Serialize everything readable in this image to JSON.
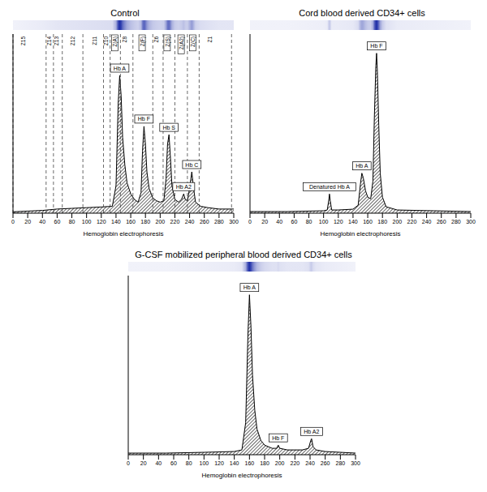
{
  "chart_data": [
    {
      "type": "line",
      "title": "Control",
      "x_label": "Hemoglobin electrophoresis",
      "color": "#000000",
      "x": [
        0,
        20,
        40,
        60,
        80,
        100,
        120,
        135,
        140,
        143,
        145,
        147,
        149,
        152,
        155,
        160,
        165,
        170,
        174,
        176,
        178,
        180,
        182,
        185,
        190,
        195,
        200,
        205,
        208,
        210,
        212,
        214,
        216,
        220,
        225,
        229,
        232,
        234,
        237,
        240,
        243,
        245,
        248,
        255,
        265,
        280,
        300
      ],
      "values": [
        1,
        1.5,
        2,
        3,
        3.5,
        4,
        4.5,
        5,
        20,
        80,
        100,
        85,
        55,
        35,
        22,
        14,
        10,
        8,
        15,
        45,
        63,
        50,
        30,
        18,
        11,
        9,
        8,
        9,
        25,
        50,
        57,
        40,
        20,
        10,
        8,
        10,
        14,
        10,
        9,
        18,
        30,
        20,
        8,
        5,
        4,
        3,
        3
      ],
      "xlim": [
        0,
        300
      ],
      "xticks": [
        0,
        20,
        40,
        60,
        80,
        100,
        120,
        140,
        160,
        180,
        200,
        220,
        240,
        260,
        280,
        300
      ],
      "ylim": [
        0,
        130
      ],
      "tick_labels": "x",
      "peaks": [
        {
          "label": "Hb A",
          "x": 145,
          "y": 100
        },
        {
          "label": "Hb F",
          "x": 178,
          "y": 63
        },
        {
          "label": "Hb S",
          "x": 212,
          "y": 57
        },
        {
          "label": "Hb A2",
          "x": 232,
          "y": 14
        },
        {
          "label": "Hb C",
          "x": 243,
          "y": 30
        }
      ],
      "zones": {
        "boundaries": [
          0,
          45,
          55,
          67,
          95,
          123,
          132,
          146,
          163,
          190,
          204,
          220,
          237,
          253,
          297
        ],
        "labels": [
          {
            "label": "Z15",
            "x": 14
          },
          {
            "label": "Z14",
            "x": 49
          },
          {
            "label": "Z13",
            "x": 59
          },
          {
            "label": "Z12",
            "x": 81
          },
          {
            "label": "Z11",
            "x": 111
          },
          {
            "label": "Z10",
            "x": 127
          },
          {
            "label": "Z(A)",
            "x": 139
          },
          {
            "label": "Z8",
            "x": 152
          },
          {
            "label": "Z(F)",
            "x": 176
          },
          {
            "label": "Z6",
            "x": 195
          },
          {
            "label": "Z(S)",
            "x": 210
          },
          {
            "label": "Z(A2)",
            "x": 229
          },
          {
            "label": "Z(C)",
            "x": 245
          },
          {
            "label": "Z1",
            "x": 268
          }
        ]
      }
    },
    {
      "type": "line",
      "title": "Cord blood derived CD34+ cells",
      "x_label": "Hemoglobin electrophoresis",
      "color": "#000000",
      "x": [
        0,
        50,
        100,
        105,
        107,
        108,
        109,
        111,
        120,
        140,
        147,
        150,
        152,
        154,
        157,
        160,
        164,
        167,
        169,
        171,
        172,
        173,
        175,
        177,
        180,
        185,
        200,
        250,
        300
      ],
      "values": [
        1,
        1,
        1.5,
        2,
        8,
        12,
        8,
        2,
        2,
        2.5,
        5,
        18,
        25,
        22,
        14,
        10,
        9,
        20,
        60,
        92,
        100,
        90,
        55,
        25,
        10,
        4,
        2,
        1.5,
        1
      ],
      "xlim": [
        0,
        300
      ],
      "xticks": [
        0,
        20,
        40,
        60,
        80,
        100,
        120,
        140,
        160,
        180,
        200,
        220,
        240,
        260,
        280,
        300
      ],
      "ylim": [
        0,
        112
      ],
      "tick_labels": "x",
      "peaks": [
        {
          "label": "Denatured Hb A",
          "x": 108,
          "y": 12
        },
        {
          "label": "Hb A",
          "x": 152,
          "y": 25
        },
        {
          "label": "Hb F",
          "x": 172,
          "y": 100
        }
      ]
    },
    {
      "type": "line",
      "title": "G-CSF mobilized peripheral blood derived CD34+ cells",
      "x_label": "Hemoglobin electrophoresis",
      "color": "#000000",
      "x": [
        0,
        50,
        100,
        140,
        150,
        155,
        158,
        160,
        162,
        164,
        167,
        170,
        175,
        180,
        190,
        196,
        198,
        200,
        210,
        230,
        238,
        241,
        242,
        244,
        248,
        260,
        300
      ],
      "values": [
        1,
        1,
        1.5,
        2,
        3,
        20,
        75,
        100,
        80,
        50,
        28,
        16,
        9,
        6,
        4,
        4,
        6,
        4,
        3,
        3,
        4,
        9,
        10,
        5,
        3,
        2,
        1
      ],
      "xlim": [
        0,
        300
      ],
      "xticks": [
        0,
        20,
        40,
        60,
        80,
        100,
        120,
        140,
        160,
        180,
        200,
        220,
        240,
        260,
        280,
        300
      ],
      "ylim": [
        0,
        112
      ],
      "tick_labels": "x",
      "peaks": [
        {
          "label": "Hb A",
          "x": 160,
          "y": 100
        },
        {
          "label": "Hb F",
          "x": 198,
          "y": 6
        },
        {
          "label": "Hb A2",
          "x": 242,
          "y": 10
        }
      ]
    }
  ]
}
